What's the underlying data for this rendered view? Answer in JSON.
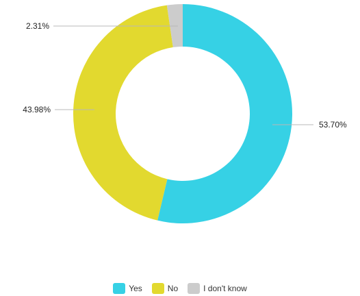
{
  "chart_data": {
    "type": "pie",
    "variant": "donut",
    "title": "",
    "legend_position": "bottom",
    "series": [
      {
        "categories": [
          "Yes",
          "No",
          "I don't know"
        ],
        "values": [
          53.7,
          43.98,
          2.31
        ],
        "labels": [
          "53.70%",
          "43.98%",
          "2.31%"
        ],
        "colors": [
          "#36d1e5",
          "#e2d92f",
          "#cccccc"
        ]
      }
    ]
  }
}
